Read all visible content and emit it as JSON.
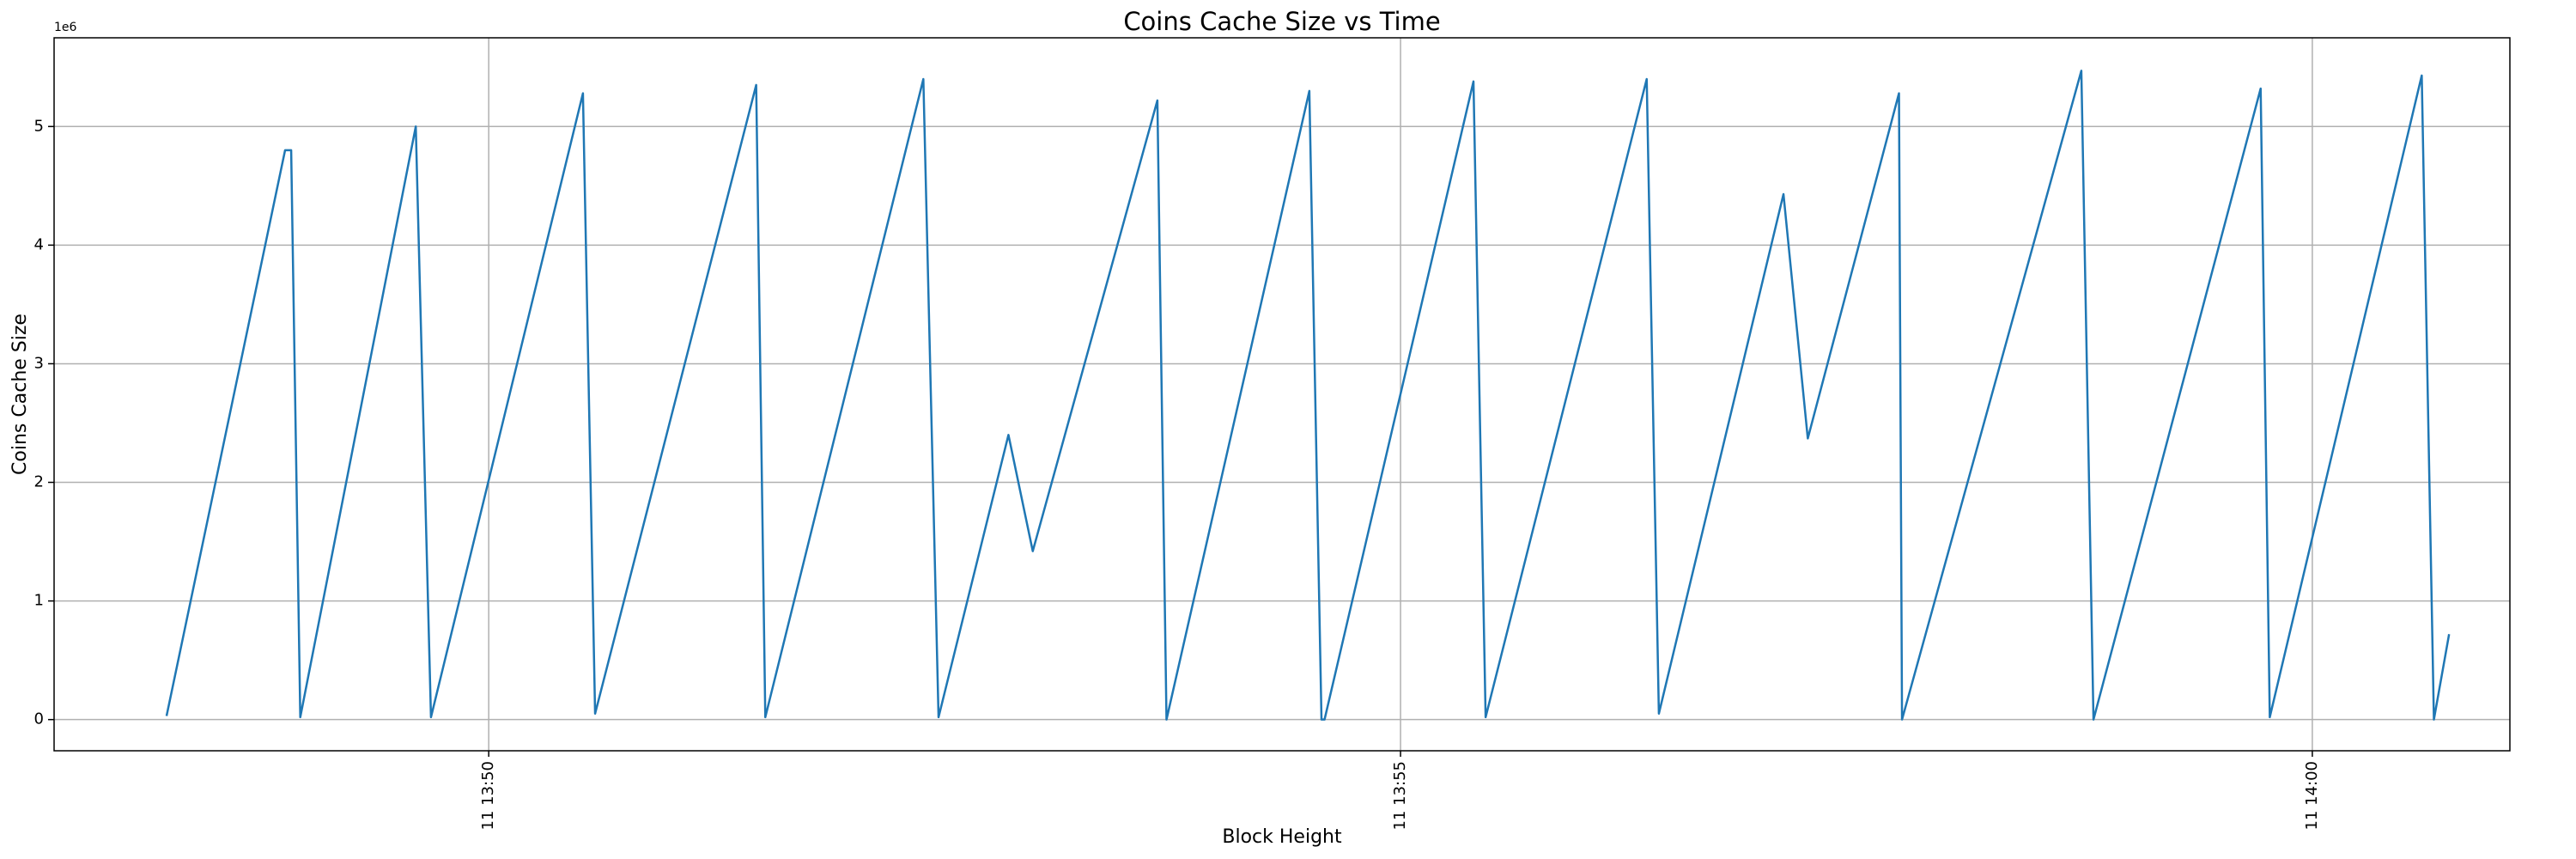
{
  "chart_data": {
    "type": "line",
    "title": "Coins Cache Size vs Time",
    "x_label": "Block Height",
    "y_label": "Coins Cache Size",
    "y_offset_label": "1e6",
    "color": "#1f77b4",
    "grid": true,
    "x": [
      "11 13:48:14",
      "11 13:48:53",
      "11 13:48:55",
      "11 13:48:58",
      "11 13:49:36",
      "11 13:49:41",
      "11 13:50:31",
      "11 13:50:35",
      "11 13:51:28",
      "11 13:51:31",
      "11 13:52:23",
      "11 13:52:28",
      "11 13:52:51",
      "11 13:52:59",
      "11 13:53:40",
      "11 13:53:43",
      "11 13:54:30",
      "11 13:54:34",
      "11 13:54:35",
      "11 13:55:24",
      "11 13:55:28",
      "11 13:56:21",
      "11 13:56:25",
      "11 13:57:06",
      "11 13:57:14",
      "11 13:57:44",
      "11 13:57:45",
      "11 13:58:44",
      "11 13:58:48",
      "11 13:59:43",
      "11 13:59:46",
      "11 14:00:36",
      "11 14:00:40",
      "11 14:00:45"
    ],
    "values": [
      30000,
      4800000,
      4800000,
      20000,
      5000000,
      20000,
      5280000,
      50000,
      5350000,
      20000,
      5400000,
      20000,
      2400000,
      1420000,
      5220000,
      0,
      5300000,
      0,
      0,
      5380000,
      20000,
      5400000,
      50000,
      4430000,
      2370000,
      5280000,
      0,
      5470000,
      0,
      5320000,
      20000,
      5430000,
      0,
      720000
    ],
    "xlim": [
      "11 13:47:37",
      "11 14:01:05"
    ],
    "xticks": [
      "11 13:50",
      "11 13:55",
      "11 14:00"
    ],
    "ylim": [
      -263000,
      5748000
    ],
    "yticks": [
      {
        "value": 0,
        "label": "0"
      },
      {
        "value": 1000000,
        "label": "1"
      },
      {
        "value": 2000000,
        "label": "2"
      },
      {
        "value": 3000000,
        "label": "3"
      },
      {
        "value": 4000000,
        "label": "4"
      },
      {
        "value": 5000000,
        "label": "5"
      }
    ]
  }
}
